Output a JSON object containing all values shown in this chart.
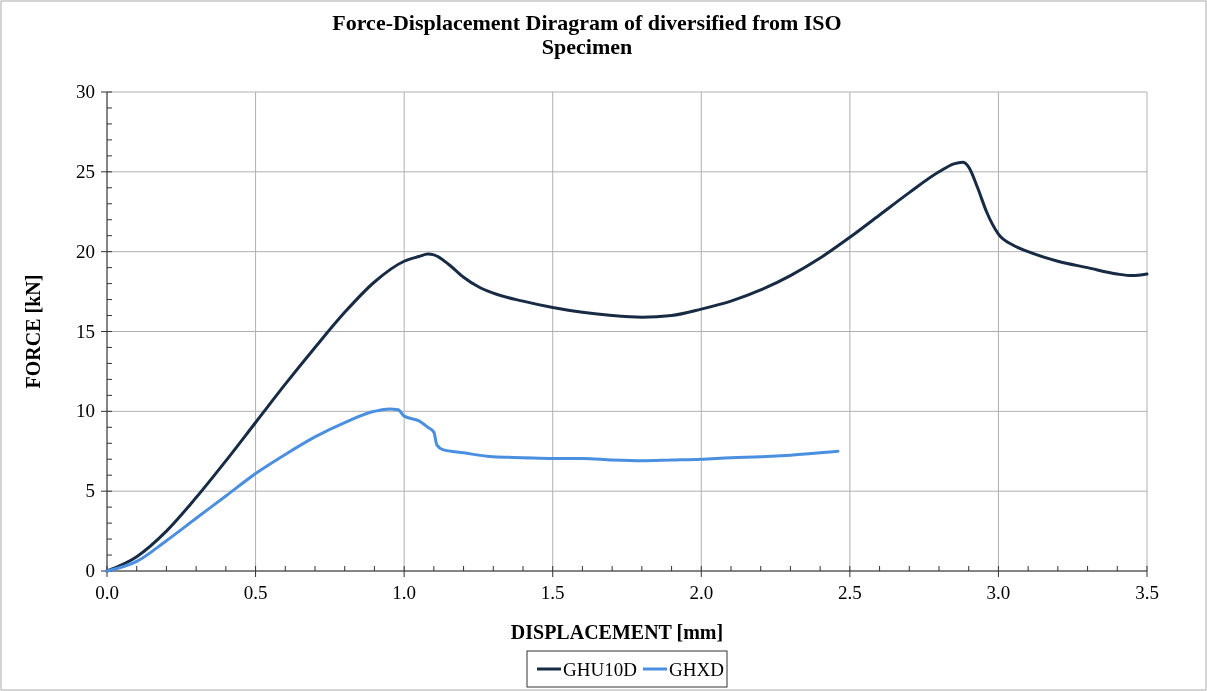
{
  "chart_data": {
    "type": "line",
    "title": "Force-Displacement Diragram of diversified from ISO\nSpecimen",
    "xlabel": "DISPLACEMENT  [mm]",
    "ylabel": "FORCE  [kN]",
    "xlim": [
      0,
      3.5
    ],
    "ylim": [
      0,
      30
    ],
    "xticks": [
      {
        "value": 0,
        "label": "0.0"
      },
      {
        "value": 0.5,
        "label": "0.5"
      },
      {
        "value": 1,
        "label": "1.0"
      },
      {
        "value": 1.5,
        "label": "1.5"
      },
      {
        "value": 2,
        "label": "2.0"
      },
      {
        "value": 2.5,
        "label": "2.5"
      },
      {
        "value": 3,
        "label": "3.0"
      },
      {
        "value": 3.5,
        "label": "3.5"
      }
    ],
    "yticks": [
      0,
      5,
      10,
      15,
      20,
      25,
      30
    ],
    "grid": true,
    "legend": "bottom",
    "marker": "none",
    "line_style": "solid",
    "series": [
      {
        "name": "GHU10D",
        "color": "#172b45",
        "x": [
          0,
          0.1,
          0.2,
          0.3,
          0.4,
          0.5,
          0.6,
          0.7,
          0.8,
          0.9,
          1.0,
          1.05,
          1.08,
          1.1,
          1.15,
          1.2,
          1.25,
          1.3,
          1.4,
          1.5,
          1.6,
          1.7,
          1.8,
          1.9,
          2.0,
          2.1,
          2.2,
          2.3,
          2.4,
          2.5,
          2.6,
          2.7,
          2.8,
          2.85,
          2.88,
          2.9,
          2.93,
          2.96,
          3.0,
          3.05,
          3.1,
          3.2,
          3.3,
          3.4,
          3.45,
          3.5
        ],
        "values": [
          0,
          0.9,
          2.5,
          4.6,
          6.9,
          9.3,
          11.7,
          14.0,
          16.2,
          18.1,
          19.4,
          19.7,
          19.85,
          19.8,
          19.2,
          18.4,
          17.8,
          17.4,
          16.9,
          16.5,
          16.2,
          16.0,
          15.9,
          16.0,
          16.4,
          16.9,
          17.6,
          18.5,
          19.6,
          20.9,
          22.3,
          23.7,
          25.0,
          25.5,
          25.6,
          25.3,
          24.0,
          22.5,
          21.1,
          20.4,
          20.0,
          19.4,
          19.0,
          18.6,
          18.5,
          18.6
        ]
      },
      {
        "name": "GHXD",
        "color": "#4a8fe0",
        "x": [
          0,
          0.1,
          0.2,
          0.3,
          0.4,
          0.5,
          0.6,
          0.7,
          0.8,
          0.9,
          0.95,
          0.98,
          1.0,
          1.05,
          1.08,
          1.1,
          1.11,
          1.13,
          1.2,
          1.3,
          1.4,
          1.5,
          1.6,
          1.7,
          1.8,
          1.9,
          2.0,
          2.1,
          2.2,
          2.3,
          2.4,
          2.46
        ],
        "values": [
          0,
          0.6,
          1.9,
          3.3,
          4.7,
          6.1,
          7.3,
          8.4,
          9.3,
          10.0,
          10.15,
          10.1,
          9.7,
          9.4,
          9.0,
          8.7,
          7.9,
          7.6,
          7.4,
          7.15,
          7.1,
          7.05,
          7.05,
          6.95,
          6.9,
          6.95,
          7.0,
          7.1,
          7.15,
          7.25,
          7.4,
          7.5
        ]
      }
    ]
  }
}
